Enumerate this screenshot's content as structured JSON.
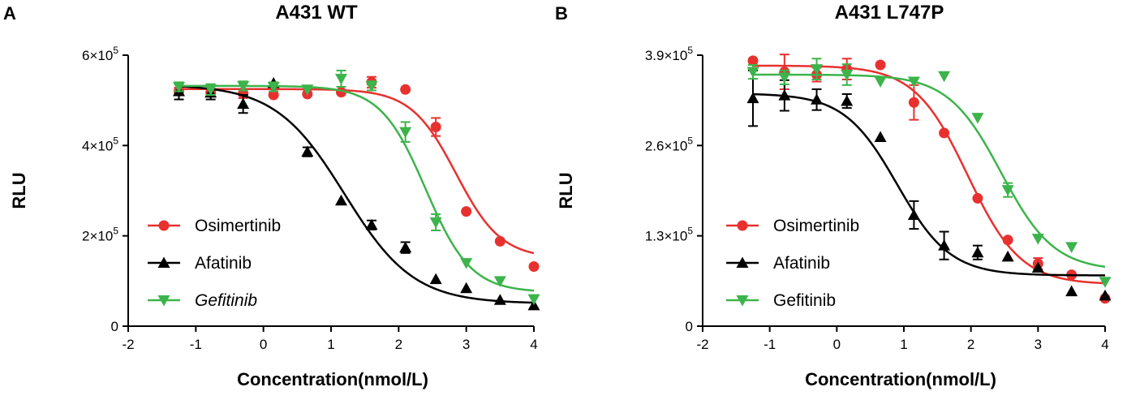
{
  "chart_data": [
    {
      "type": "line",
      "panel_letter": "A",
      "title": "A431 WT",
      "xlabel": "Concentration(nmol/L)",
      "ylabel": "RLU",
      "xlim": [
        -2,
        4
      ],
      "ylim": [
        0,
        600000
      ],
      "x_ticks": [
        -2,
        -1,
        0,
        1,
        2,
        3,
        4
      ],
      "y_ticks": [
        {
          "value": 0,
          "label": "0"
        },
        {
          "value": 200000,
          "label": "2×10",
          "exp": "5"
        },
        {
          "value": 400000,
          "label": "4×10",
          "exp": "5"
        },
        {
          "value": 600000,
          "label": "6×10",
          "exp": "5"
        }
      ],
      "legend_position": "bottom-left",
      "series": [
        {
          "name": "Osimertinib",
          "italic": false,
          "color": "#e8312f",
          "marker": "circle",
          "x": [
            -1.25,
            -0.78,
            -0.3,
            0.15,
            0.65,
            1.15,
            1.6,
            2.1,
            2.55,
            3.0,
            3.5,
            4.0
          ],
          "y": [
            520000,
            517000,
            515000,
            512000,
            514000,
            518000,
            540000,
            524000,
            441000,
            254000,
            188000,
            132000
          ],
          "err": [
            8000,
            8000,
            10000,
            0,
            0,
            0,
            12000,
            0,
            20000,
            0,
            0,
            0
          ],
          "fit": {
            "bottom": 150000,
            "top": 525000,
            "logec50": 2.85,
            "hill": 1.3
          }
        },
        {
          "name": "Afatinib",
          "italic": false,
          "color": "#000000",
          "marker": "triangle-up",
          "x": [
            -1.25,
            -0.78,
            -0.3,
            0.15,
            0.65,
            1.15,
            1.6,
            2.1,
            2.55,
            3.0,
            3.5,
            4.0
          ],
          "y": [
            520000,
            517000,
            492000,
            538000,
            386000,
            278000,
            224000,
            174000,
            104000,
            84000,
            58000,
            46000
          ],
          "err": [
            18000,
            15000,
            20000,
            0,
            10000,
            0,
            10000,
            12000,
            0,
            0,
            0,
            0
          ],
          "fit": {
            "bottom": 50000,
            "top": 535000,
            "logec50": 1.2,
            "hill": 0.85
          }
        },
        {
          "name": "Gefitinib",
          "italic": true,
          "color": "#3cb44b",
          "marker": "triangle-down",
          "x": [
            -1.25,
            -0.78,
            -0.3,
            0.15,
            0.65,
            1.15,
            1.6,
            2.1,
            2.55,
            3.0,
            3.5,
            4.0
          ],
          "y": [
            530000,
            524000,
            532000,
            530000,
            524000,
            548000,
            532000,
            430000,
            230000,
            140000,
            100000,
            60000
          ],
          "err": [
            10000,
            12000,
            10000,
            10000,
            0,
            18000,
            10000,
            22000,
            18000,
            0,
            0,
            0
          ],
          "fit": {
            "bottom": 75000,
            "top": 532000,
            "logec50": 2.4,
            "hill": 1.3
          }
        }
      ]
    },
    {
      "type": "line",
      "panel_letter": "B",
      "title": "A431 L747P",
      "xlabel": "Concentration(nmol/L)",
      "ylabel": "RLU",
      "xlim": [
        -2,
        4
      ],
      "ylim": [
        0,
        390000
      ],
      "x_ticks": [
        -2,
        -1,
        0,
        1,
        2,
        3,
        4
      ],
      "y_ticks": [
        {
          "value": 0,
          "label": "0"
        },
        {
          "value": 130000,
          "label": "1.3×10",
          "exp": "5"
        },
        {
          "value": 260000,
          "label": "2.6×10",
          "exp": "5"
        },
        {
          "value": 390000,
          "label": "3.9×10",
          "exp": "5"
        }
      ],
      "legend_position": "bottom-left",
      "series": [
        {
          "name": "Osimertinib",
          "italic": false,
          "color": "#e8312f",
          "marker": "circle",
          "x": [
            -1.25,
            -0.78,
            -0.3,
            0.15,
            0.65,
            1.15,
            1.6,
            2.1,
            2.55,
            3.0,
            3.5,
            4.0
          ],
          "y": [
            382000,
            366000,
            362000,
            370000,
            376000,
            322000,
            278000,
            184000,
            124000,
            90000,
            74000,
            40000
          ],
          "err": [
            0,
            25000,
            10000,
            15000,
            0,
            25000,
            0,
            0,
            0,
            8000,
            0,
            0
          ],
          "fit": {
            "bottom": 60000,
            "top": 375000,
            "logec50": 1.95,
            "hill": 1.1
          }
        },
        {
          "name": "Afatinib",
          "italic": false,
          "color": "#000000",
          "marker": "triangle-up",
          "x": [
            -1.25,
            -0.78,
            -0.3,
            0.15,
            0.65,
            1.15,
            1.6,
            2.1,
            2.55,
            3.0,
            3.5,
            4.0
          ],
          "y": [
            328000,
            332000,
            326000,
            324000,
            272000,
            160000,
            116000,
            106000,
            100000,
            84000,
            50000,
            44000
          ],
          "err": [
            40000,
            22000,
            15000,
            10000,
            0,
            20000,
            20000,
            10000,
            0,
            0,
            0,
            0
          ],
          "fit": {
            "bottom": 73000,
            "top": 335000,
            "logec50": 0.9,
            "hill": 1.1
          }
        },
        {
          "name": "Gefitinib",
          "italic": false,
          "color": "#3cb44b",
          "marker": "triangle-down",
          "x": [
            -1.25,
            -0.78,
            -0.3,
            0.15,
            0.65,
            1.15,
            1.6,
            2.1,
            2.55,
            3.0,
            3.5,
            4.0
          ],
          "y": [
            366000,
            358000,
            370000,
            362000,
            352000,
            352000,
            360000,
            300000,
            196000,
            126000,
            114000,
            64000
          ],
          "err": [
            10000,
            10000,
            15000,
            15000,
            0,
            0,
            0,
            0,
            10000,
            0,
            0,
            0
          ],
          "fit": {
            "bottom": 80000,
            "top": 362000,
            "logec50": 2.45,
            "hill": 1.1
          }
        }
      ]
    }
  ]
}
